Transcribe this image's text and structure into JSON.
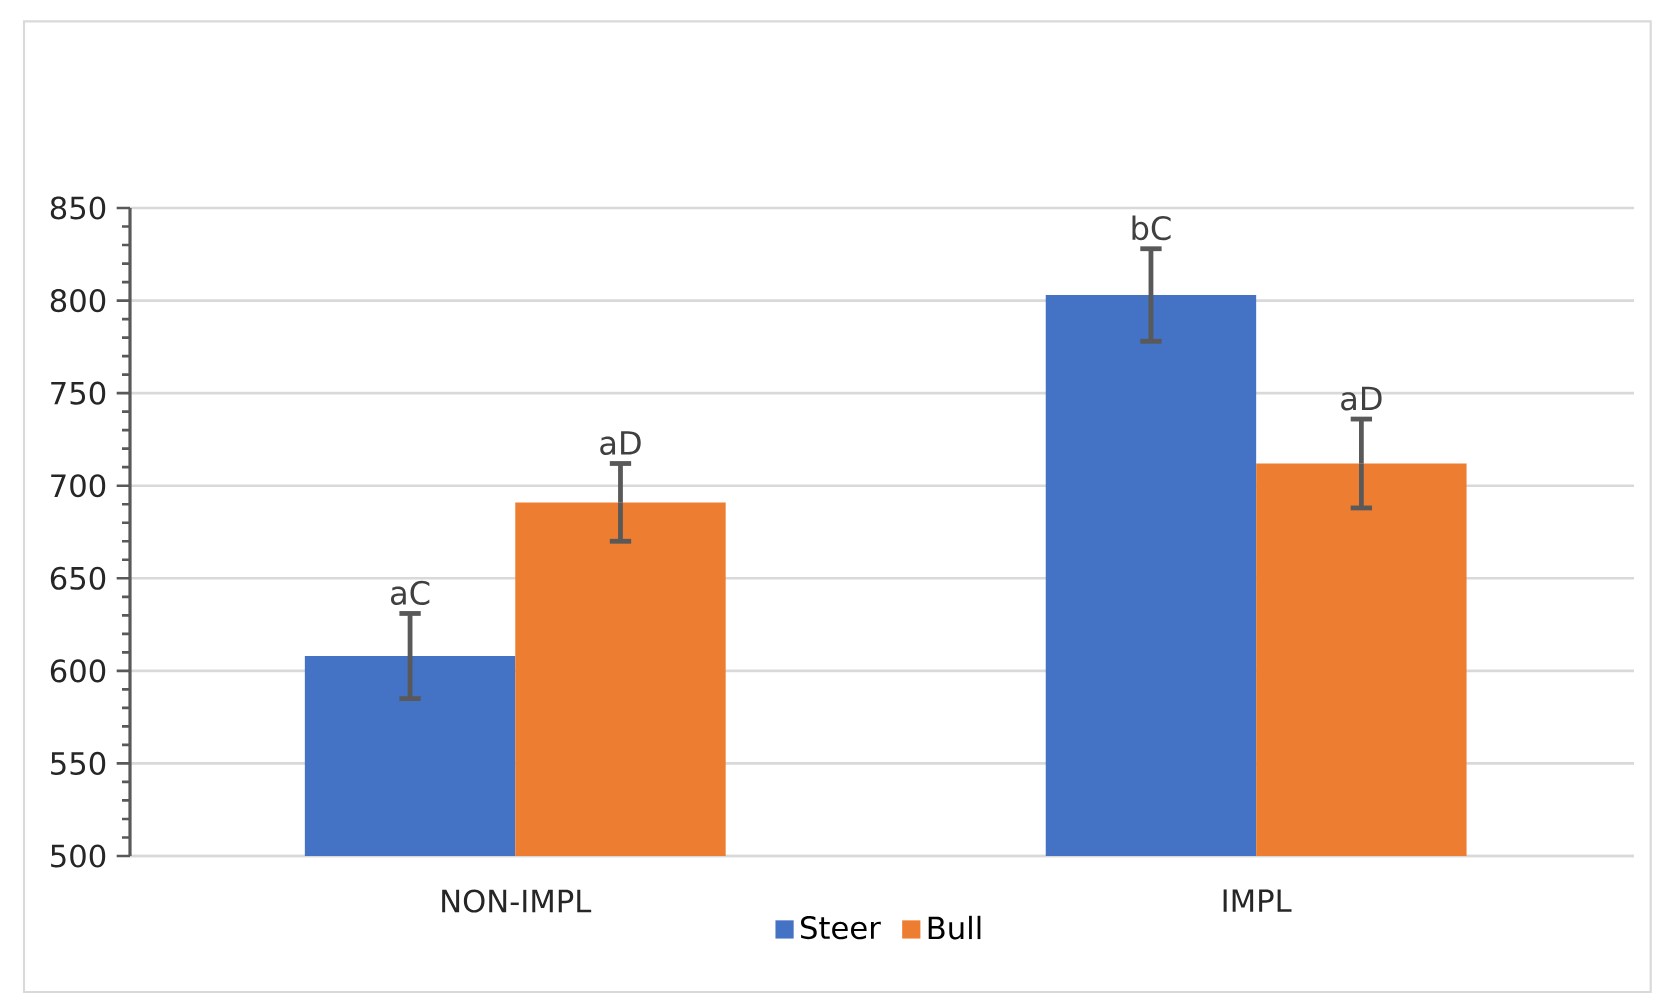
{
  "chart_data": {
    "type": "bar",
    "categories": [
      "NON-IMPL",
      "IMPL"
    ],
    "series": [
      {
        "name": "Steer",
        "color": "#4472c4",
        "values": [
          608,
          803
        ],
        "errors": [
          23,
          25
        ]
      },
      {
        "name": "Bull",
        "color": "#ed7d31",
        "values": [
          691,
          712
        ],
        "errors": [
          21,
          24
        ]
      }
    ],
    "ylim": [
      500,
      850
    ],
    "yticks": [
      500,
      550,
      600,
      650,
      700,
      750,
      800,
      850
    ],
    "grid": "y",
    "legend": "bottom",
    "annotations": [
      "aC",
      "aD",
      "bC",
      "aD"
    ]
  }
}
